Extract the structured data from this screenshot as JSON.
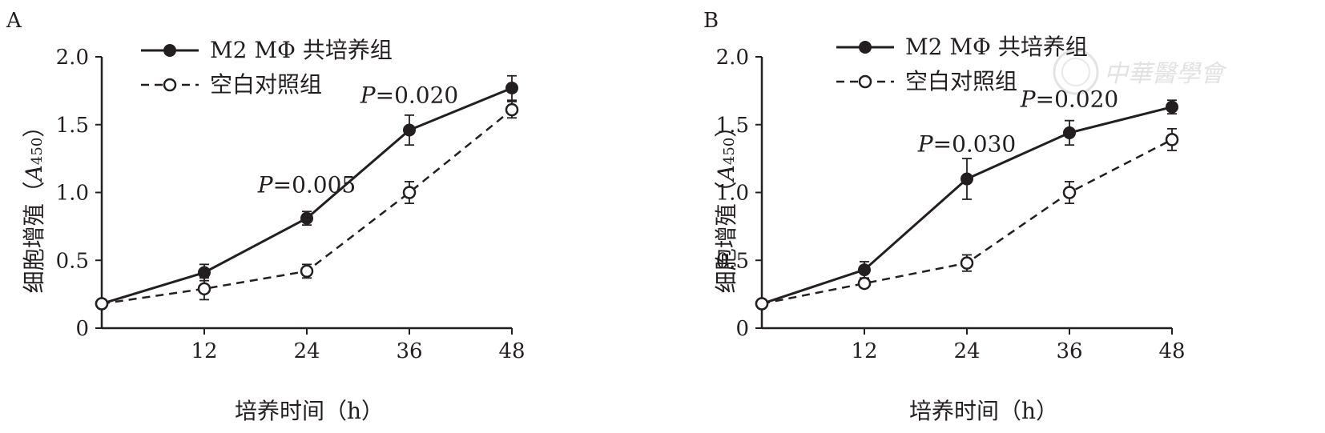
{
  "legend": {
    "coculture": "M2 MΦ 共培养组",
    "control": "空白对照组"
  },
  "watermark": "中華醫學會",
  "chart_data": [
    {
      "type": "line",
      "panel": "A",
      "xlabel": "培养时间（h）",
      "ylabel": "细胞增殖（",
      "ylabel_italic": "A",
      "ylabel_sub": "450",
      "ylabel_close": "）",
      "x": [
        0,
        12,
        24,
        36,
        48
      ],
      "xticks": [
        "12",
        "24",
        "36",
        "48"
      ],
      "xlim": [
        0,
        48
      ],
      "yticks": [
        "0",
        "0.5",
        "1.0",
        "1.5",
        "2.0"
      ],
      "ylim": [
        0,
        2.0
      ],
      "series": [
        {
          "name": "M2 MΦ 共培养组",
          "values": [
            0.18,
            0.41,
            0.81,
            1.46,
            1.77
          ],
          "errors": [
            0,
            0.06,
            0.05,
            0.11,
            0.09
          ]
        },
        {
          "name": "空白对照组",
          "values": [
            0.18,
            0.29,
            0.42,
            1.0,
            1.61
          ],
          "errors": [
            0,
            0.08,
            0.05,
            0.08,
            0.06
          ]
        }
      ],
      "annotations": [
        {
          "italic": "P",
          "text": "=0.005",
          "x": 24,
          "y": 1.0
        },
        {
          "italic": "P",
          "text": "=0.020",
          "x": 36,
          "y": 1.66
        }
      ]
    },
    {
      "type": "line",
      "panel": "B",
      "xlabel": "培养时间（h）",
      "ylabel": "细胞增殖（",
      "ylabel_italic": "A",
      "ylabel_sub": "450",
      "ylabel_close": "）",
      "x": [
        0,
        12,
        24,
        36,
        48
      ],
      "xticks": [
        "12",
        "24",
        "36",
        "48"
      ],
      "xlim": [
        0,
        48
      ],
      "yticks": [
        "0",
        "0.5",
        "1.0",
        "1.5",
        "2.0"
      ],
      "ylim": [
        0,
        2.0
      ],
      "series": [
        {
          "name": "M2 MΦ 共培养组",
          "values": [
            0.18,
            0.43,
            1.1,
            1.44,
            1.63
          ],
          "errors": [
            0,
            0.06,
            0.15,
            0.09,
            0.05
          ]
        },
        {
          "name": "空白对照组",
          "values": [
            0.18,
            0.33,
            0.48,
            1.0,
            1.39
          ],
          "errors": [
            0,
            0.03,
            0.06,
            0.08,
            0.08
          ]
        }
      ],
      "annotations": [
        {
          "italic": "P",
          "text": "=0.030",
          "x": 24,
          "y": 1.3
        },
        {
          "italic": "P",
          "text": "=0.020",
          "x": 36,
          "y": 1.63
        }
      ]
    }
  ]
}
